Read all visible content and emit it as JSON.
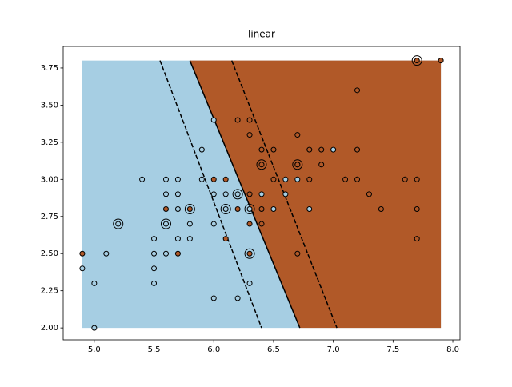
{
  "chart_data": {
    "type": "svm-scatter",
    "title": "linear",
    "xlim": [
      4.74,
      8.06
    ],
    "ylim": [
      1.92,
      3.895
    ],
    "xticks": [
      {
        "value": 5,
        "label": "5.0"
      },
      {
        "value": 5.5,
        "label": "5.5"
      },
      {
        "value": 6,
        "label": "6.0"
      },
      {
        "value": 6.5,
        "label": "6.5"
      },
      {
        "value": 7,
        "label": "7.0"
      },
      {
        "value": 7.5,
        "label": "7.5"
      },
      {
        "value": 8,
        "label": "8.0"
      }
    ],
    "yticks": [
      {
        "value": 2,
        "label": "2.00"
      },
      {
        "value": 2.25,
        "label": "2.25"
      },
      {
        "value": 2.5,
        "label": "2.50"
      },
      {
        "value": 2.75,
        "label": "2.75"
      },
      {
        "value": 3,
        "label": "3.00"
      },
      {
        "value": 3.25,
        "label": "3.25"
      },
      {
        "value": 3.5,
        "label": "3.50"
      },
      {
        "value": 3.75,
        "label": "3.75"
      }
    ],
    "mesh_xlim": [
      4.9,
      7.9
    ],
    "mesh_ylim": [
      2.0,
      3.8
    ],
    "region_colors": [
      "#a6cee3",
      "#b15928"
    ],
    "decision_boundary": {
      "x": [
        5.8,
        6.72
      ],
      "y": [
        3.8,
        2.0
      ]
    },
    "margins": [
      {
        "x": [
          5.55,
          6.4
        ],
        "y": [
          3.8,
          2.0
        ]
      },
      {
        "x": [
          6.15,
          7.03
        ],
        "y": [
          3.8,
          2.0
        ]
      }
    ],
    "series": [
      {
        "color": "#a6cee3",
        "x": [
          4.9,
          5.0,
          5.0,
          5.1,
          5.2,
          5.4,
          5.5,
          5.5,
          5.5,
          5.5,
          5.6,
          5.6,
          5.6,
          5.6,
          5.7,
          5.7,
          5.7,
          5.7,
          5.8,
          5.8,
          5.9,
          5.9,
          6.0,
          6.0,
          6.0,
          6.0,
          6.1,
          6.1,
          6.2,
          6.2,
          6.3,
          6.3,
          6.4,
          6.5,
          6.6,
          6.6,
          6.7,
          6.7,
          6.8,
          7.0
        ],
        "y": [
          2.4,
          2.3,
          2.0,
          2.5,
          2.7,
          3.0,
          2.6,
          2.5,
          2.4,
          2.3,
          3.0,
          2.9,
          2.7,
          2.5,
          3.0,
          2.9,
          2.8,
          2.6,
          2.7,
          2.6,
          3.2,
          3.0,
          3.4,
          2.9,
          2.7,
          2.2,
          2.9,
          2.8,
          2.9,
          2.2,
          2.3,
          2.8,
          2.9,
          2.8,
          3.0,
          2.9,
          3.1,
          3.0,
          2.8,
          3.2
        ]
      },
      {
        "color": "#b15928",
        "x": [
          4.9,
          5.6,
          5.7,
          5.8,
          6.0,
          6.1,
          6.1,
          6.2,
          6.2,
          6.3,
          6.3,
          6.3,
          6.3,
          6.3,
          6.4,
          6.4,
          6.4,
          6.4,
          6.5,
          6.5,
          6.7,
          6.7,
          6.7,
          6.8,
          6.8,
          6.9,
          6.9,
          7.1,
          7.2,
          7.2,
          7.2,
          7.3,
          7.4,
          7.6,
          7.7,
          7.7,
          7.7,
          7.7,
          7.9
        ],
        "y": [
          2.5,
          2.8,
          2.5,
          2.8,
          3.0,
          3.0,
          2.6,
          2.8,
          3.4,
          3.4,
          3.3,
          2.9,
          2.7,
          2.5,
          3.2,
          3.1,
          2.8,
          2.7,
          3.2,
          3.0,
          3.3,
          2.5,
          3.1,
          3.2,
          3.0,
          3.2,
          3.1,
          3.0,
          3.6,
          3.2,
          3.0,
          2.9,
          2.8,
          3.0,
          3.8,
          3.0,
          2.8,
          2.6,
          3.8
        ]
      }
    ],
    "support_vectors": {
      "x": [
        5.2,
        5.6,
        5.8,
        6.1,
        6.2,
        6.3,
        6.3,
        6.4,
        6.7,
        7.7
      ],
      "y": [
        2.7,
        2.7,
        2.8,
        2.8,
        2.9,
        2.8,
        2.5,
        3.1,
        3.1,
        3.8
      ]
    }
  }
}
